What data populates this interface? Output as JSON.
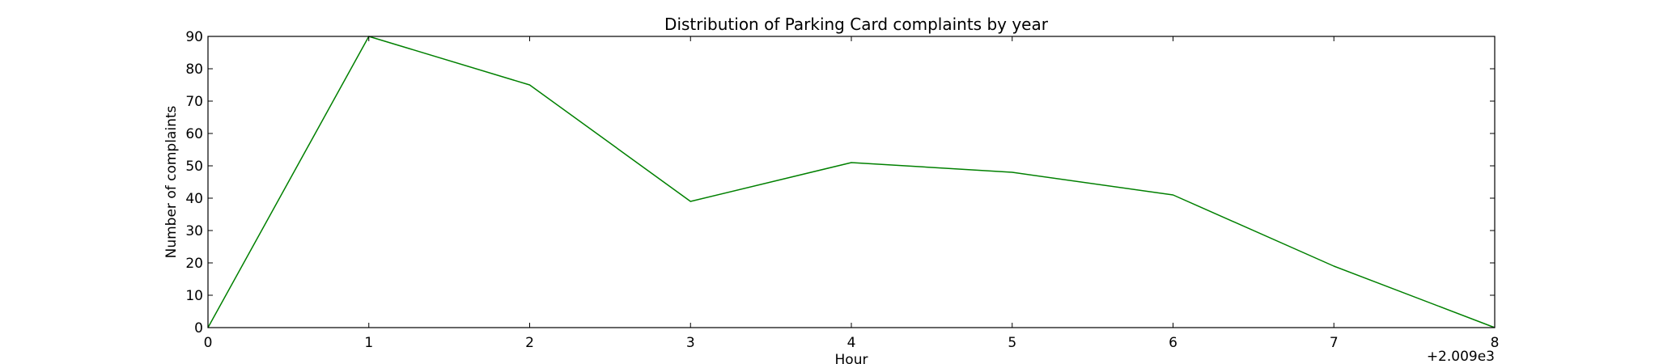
{
  "chart_data": {
    "type": "line",
    "title": "Distribution of  Parking Card complaints by year",
    "xlabel": "Hour",
    "ylabel": "Number of complaints",
    "x_offset_label": "+2.009e3",
    "xlim": [
      0,
      8
    ],
    "ylim": [
      0,
      90
    ],
    "x_ticks": [
      0,
      1,
      2,
      3,
      4,
      5,
      6,
      7,
      8
    ],
    "y_ticks": [
      0,
      10,
      20,
      30,
      40,
      50,
      60,
      70,
      80,
      90
    ],
    "grid": false,
    "legend": "none",
    "series": [
      {
        "color": "#008000",
        "x": [
          0,
          1,
          2,
          3,
          4,
          5,
          6,
          7,
          8
        ],
        "y": [
          0,
          90,
          75,
          39,
          51,
          48,
          41,
          19,
          0
        ]
      }
    ]
  }
}
